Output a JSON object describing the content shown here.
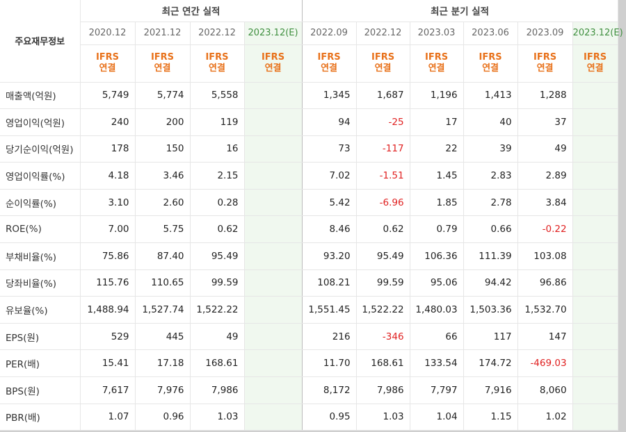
{
  "header": {
    "corner_label": "주요재무정보",
    "annual_group": "최근 연간 실적",
    "quarter_group": "최근 분기 실적",
    "standard_line1": "IFRS",
    "standard_line2": "연결"
  },
  "periods": {
    "annual": [
      "2020.12",
      "2021.12",
      "2022.12",
      "2023.12(E)"
    ],
    "quarter": [
      "2022.09",
      "2022.12",
      "2023.03",
      "2023.06",
      "2023.09",
      "2023.12(E)"
    ]
  },
  "rows": [
    {
      "label": "매출액(억원)",
      "annual": [
        "5,749",
        "5,774",
        "5,558",
        ""
      ],
      "quarter": [
        "1,345",
        "1,687",
        "1,196",
        "1,413",
        "1,288",
        ""
      ]
    },
    {
      "label": "영업이익(억원)",
      "annual": [
        "240",
        "200",
        "119",
        ""
      ],
      "quarter": [
        "94",
        "-25",
        "17",
        "40",
        "37",
        ""
      ]
    },
    {
      "label": "당기순이익(억원)",
      "annual": [
        "178",
        "150",
        "16",
        ""
      ],
      "quarter": [
        "73",
        "-117",
        "22",
        "39",
        "49",
        ""
      ]
    },
    {
      "label": "영업이익률(%)",
      "annual": [
        "4.18",
        "3.46",
        "2.15",
        ""
      ],
      "quarter": [
        "7.02",
        "-1.51",
        "1.45",
        "2.83",
        "2.89",
        ""
      ]
    },
    {
      "label": "순이익률(%)",
      "annual": [
        "3.10",
        "2.60",
        "0.28",
        ""
      ],
      "quarter": [
        "5.42",
        "-6.96",
        "1.85",
        "2.78",
        "3.84",
        ""
      ]
    },
    {
      "label": "ROE(%)",
      "annual": [
        "7.00",
        "5.75",
        "0.62",
        ""
      ],
      "quarter": [
        "8.46",
        "0.62",
        "0.79",
        "0.66",
        "-0.22",
        ""
      ]
    },
    {
      "label": "부채비율(%)",
      "annual": [
        "75.86",
        "87.40",
        "95.49",
        ""
      ],
      "quarter": [
        "93.20",
        "95.49",
        "106.36",
        "111.39",
        "103.08",
        ""
      ]
    },
    {
      "label": "당좌비율(%)",
      "annual": [
        "115.76",
        "110.65",
        "99.59",
        ""
      ],
      "quarter": [
        "108.21",
        "99.59",
        "95.06",
        "94.42",
        "96.86",
        ""
      ]
    },
    {
      "label": "유보율(%)",
      "annual": [
        "1,488.94",
        "1,527.74",
        "1,522.22",
        ""
      ],
      "quarter": [
        "1,551.45",
        "1,522.22",
        "1,480.03",
        "1,503.36",
        "1,532.70",
        ""
      ]
    },
    {
      "label": "EPS(원)",
      "annual": [
        "529",
        "445",
        "49",
        ""
      ],
      "quarter": [
        "216",
        "-346",
        "66",
        "117",
        "147",
        ""
      ]
    },
    {
      "label": "PER(배)",
      "annual": [
        "15.41",
        "17.18",
        "168.61",
        ""
      ],
      "quarter": [
        "11.70",
        "168.61",
        "133.54",
        "174.72",
        "-469.03",
        ""
      ]
    },
    {
      "label": "BPS(원)",
      "annual": [
        "7,617",
        "7,976",
        "7,986",
        ""
      ],
      "quarter": [
        "8,172",
        "7,986",
        "7,797",
        "7,916",
        "8,060",
        ""
      ]
    },
    {
      "label": "PBR(배)",
      "annual": [
        "1.07",
        "0.96",
        "1.03",
        ""
      ],
      "quarter": [
        "0.95",
        "1.03",
        "1.04",
        "1.15",
        "1.02",
        ""
      ]
    }
  ],
  "colors": {
    "negative": "#e02020",
    "standard_label": "#e8711a",
    "estimate_column_bg": "#f0f8ef",
    "estimate_header_text": "#3f8f3f"
  }
}
